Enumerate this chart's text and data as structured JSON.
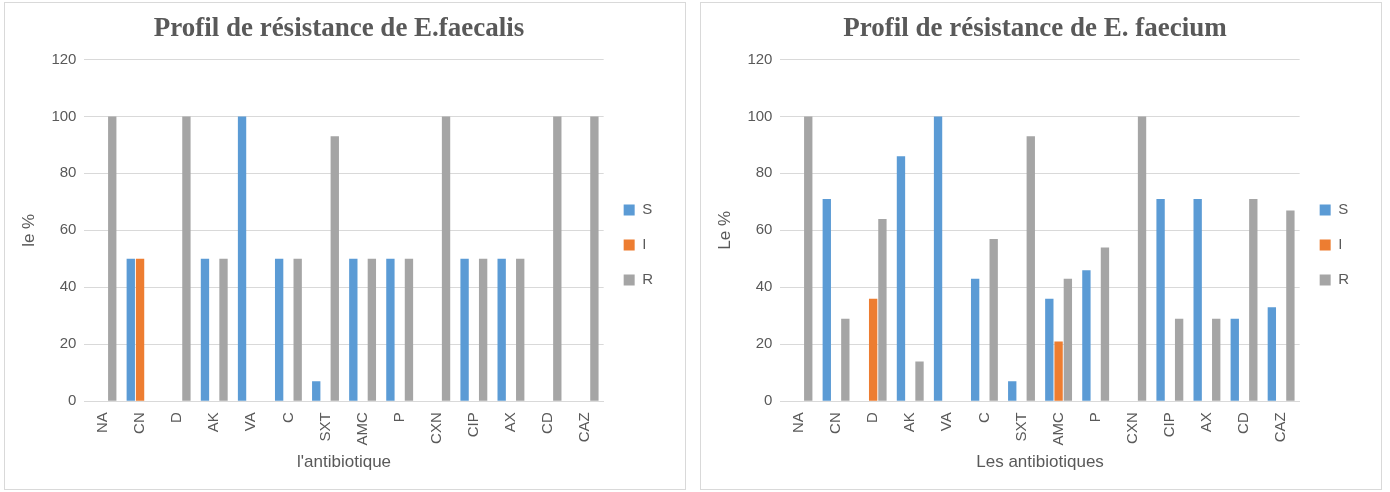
{
  "chart_data": [
    {
      "type": "bar",
      "title": "Profil de résistance de E.faecalis",
      "xlabel": "l'antibiotique",
      "ylabel": "le %",
      "categories": [
        "NA",
        "CN",
        "D",
        "AK",
        "VA",
        "C",
        "SXT",
        "AMC",
        "P",
        "CXN",
        "CIP",
        "AX",
        "CD",
        "CAZ"
      ],
      "series": [
        {
          "name": "S",
          "color": "#5b9bd5",
          "values": [
            0,
            50,
            0,
            50,
            100,
            50,
            7,
            50,
            50,
            0,
            50,
            50,
            0,
            0
          ]
        },
        {
          "name": "I",
          "color": "#ed7d31",
          "values": [
            0,
            50,
            0,
            0,
            0,
            0,
            0,
            0,
            0,
            0,
            0,
            0,
            0,
            0
          ]
        },
        {
          "name": "R",
          "color": "#a5a5a5",
          "values": [
            100,
            0,
            100,
            50,
            0,
            50,
            93,
            50,
            50,
            100,
            50,
            50,
            100,
            100
          ]
        }
      ],
      "ylim": [
        0,
        120
      ],
      "yticks": [
        0,
        20,
        40,
        60,
        80,
        100,
        120
      ],
      "grid": "y",
      "legend": "right"
    },
    {
      "type": "bar",
      "title": "Profil de résistance de E. faecium",
      "xlabel": "Les antibiotiques",
      "ylabel": "Le %",
      "categories": [
        "NA",
        "CN",
        "D",
        "AK",
        "VA",
        "C",
        "SXT",
        "AMC",
        "P",
        "CXN",
        "CIP",
        "AX",
        "CD",
        "CAZ"
      ],
      "series": [
        {
          "name": "S",
          "color": "#5b9bd5",
          "values": [
            0,
            71,
            0,
            86,
            100,
            43,
            7,
            36,
            46,
            0,
            71,
            71,
            29,
            33
          ]
        },
        {
          "name": "I",
          "color": "#ed7d31",
          "values": [
            0,
            0,
            36,
            0,
            0,
            0,
            0,
            21,
            0,
            0,
            0,
            0,
            0,
            0
          ]
        },
        {
          "name": "R",
          "color": "#a5a5a5",
          "values": [
            100,
            29,
            64,
            14,
            0,
            57,
            93,
            43,
            54,
            100,
            29,
            29,
            71,
            67
          ]
        }
      ],
      "ylim": [
        0,
        120
      ],
      "yticks": [
        0,
        20,
        40,
        60,
        80,
        100,
        120
      ],
      "grid": "y",
      "legend": "right"
    }
  ]
}
